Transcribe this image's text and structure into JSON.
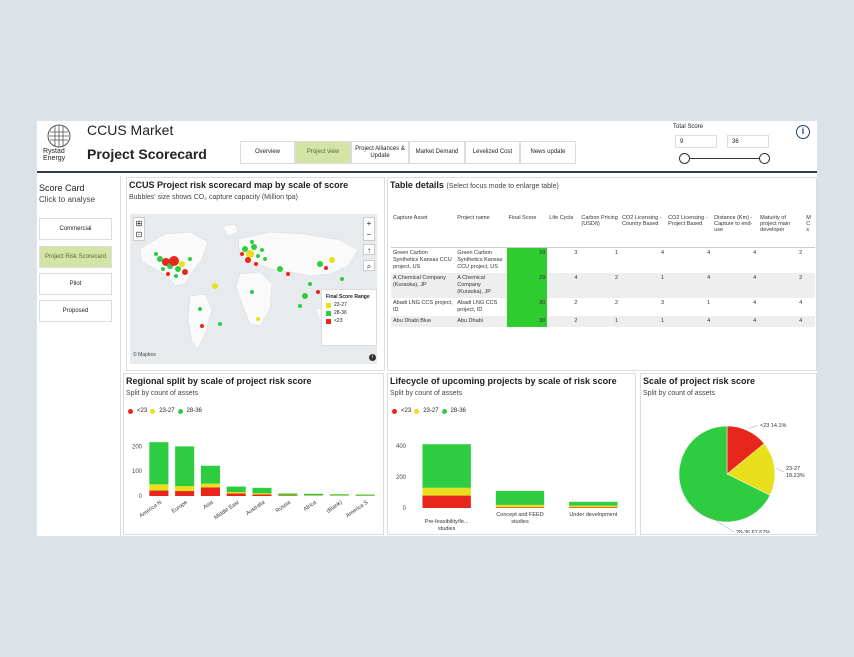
{
  "header": {
    "brand": "Rystad Energy",
    "app_title": "CCUS Market",
    "page_title": "Project Scorecard",
    "tabs": [
      {
        "label": "Overview"
      },
      {
        "label": "Project view"
      },
      {
        "label": "Project Alliances & Update"
      },
      {
        "label": "Market Demand"
      },
      {
        "label": "Levelized Cost"
      },
      {
        "label": "News update"
      }
    ],
    "active_tab": "Project view",
    "total_score": {
      "label": "Total Score",
      "min": "9",
      "max": "36"
    }
  },
  "scorecard": {
    "title": "Score Card",
    "subtitle": "Click to analyse",
    "buttons": [
      "Commercial",
      "Project Risk Scorecard",
      "Pilot",
      "Proposed"
    ],
    "active": "Project Risk Scorecard"
  },
  "map_panel": {
    "title": "CCUS Project risk scorecard map by scale of score",
    "subtitle": "Bubbles' size shows CO₂ capture capacity (Million tpa)",
    "legend_title": "Final Score Range",
    "legend": [
      "23-27",
      "28-36",
      "<23"
    ],
    "attribution": "© Mapbox"
  },
  "table_panel": {
    "title": "Table details",
    "title_note": "(Select focus mode to enlarge table)",
    "columns": [
      "Capture Asset",
      "Project name",
      "Final Score",
      "Life Cycle",
      "Carbon Pricing (USD/t)",
      "CO2 Licensing - Country Based",
      "CO2 Licensing - Project Based",
      "Distance (Km) - Capture to end-use",
      "Maturity of project main developer",
      "M C s"
    ],
    "rows": [
      [
        "Green Carbon Synthetics Kansas CCU project, US",
        "Green Carbon Synthetics Kansas CCU project, US",
        "29",
        "3",
        "1",
        "4",
        "4",
        "4",
        "2"
      ],
      [
        "A Chemical Company (Kuraoka), JP",
        "A Chemical Company (Kuraoka), JP",
        "29",
        "4",
        "2",
        "1",
        "4",
        "4",
        "2"
      ],
      [
        "Abadi LNG CCS project, ID",
        "Abadi LNG CCS project, ID",
        "30",
        "2",
        "2",
        "3",
        "1",
        "4",
        "4"
      ],
      [
        "Abu Dhabi Blue",
        "Abu Dhabi",
        "30",
        "2",
        "1",
        "1",
        "4",
        "4",
        "4"
      ]
    ]
  },
  "colors": {
    "red": "#e8271c",
    "yellow": "#e8e01c",
    "green": "#2ecc40"
  },
  "regional_panel": {
    "title": "Regional split by scale of project risk score",
    "subtitle": "Split by count of assets",
    "legend": [
      "<23",
      "23-27",
      "28-36"
    ],
    "chart_data": {
      "type": "bar",
      "stacked": true,
      "categories": [
        "America N",
        "Europe",
        "Asia",
        "Middle East",
        "Australia",
        "Russia",
        "Africa",
        "(Blank)",
        "America S"
      ],
      "series": [
        {
          "name": "<23",
          "values": [
            22,
            20,
            35,
            10,
            6,
            2,
            1,
            1,
            1
          ]
        },
        {
          "name": "23-27",
          "values": [
            25,
            20,
            15,
            6,
            5,
            2,
            2,
            2,
            1
          ]
        },
        {
          "name": "28-36",
          "values": [
            170,
            160,
            72,
            22,
            22,
            6,
            6,
            4,
            4
          ]
        }
      ],
      "ylim": [
        0,
        250
      ],
      "yticks": [
        0,
        100,
        200
      ]
    }
  },
  "lifecycle_panel": {
    "title": "Lifecycle of upcoming projects by scale of risk score",
    "subtitle": "Split by count of assets",
    "legend": [
      "<23",
      "23-27",
      "28-36"
    ],
    "chart_data": {
      "type": "bar",
      "stacked": true,
      "categories": [
        "Pre-feasibility/fe... studies",
        "Concept and FEED studies",
        "Under development"
      ],
      "series": [
        {
          "name": "<23",
          "values": [
            80,
            5,
            5
          ]
        },
        {
          "name": "23-27",
          "values": [
            50,
            15,
            10
          ]
        },
        {
          "name": "28-36",
          "values": [
            280,
            90,
            25
          ]
        }
      ],
      "ylim": [
        0,
        450
      ],
      "yticks": [
        0,
        200,
        400
      ]
    }
  },
  "scale_panel": {
    "title": "Scale of project risk score",
    "subtitle": "Split by count of assets",
    "chart_data": {
      "type": "pie",
      "slices": [
        {
          "label": "<23",
          "value": 14.1,
          "text": "<23 14.1%"
        },
        {
          "label": "23-27",
          "value": 18.23,
          "text": "23-27 18.23%"
        },
        {
          "label": "28-36",
          "value": 67.67,
          "text": "28-36 67.67%"
        }
      ]
    }
  }
}
